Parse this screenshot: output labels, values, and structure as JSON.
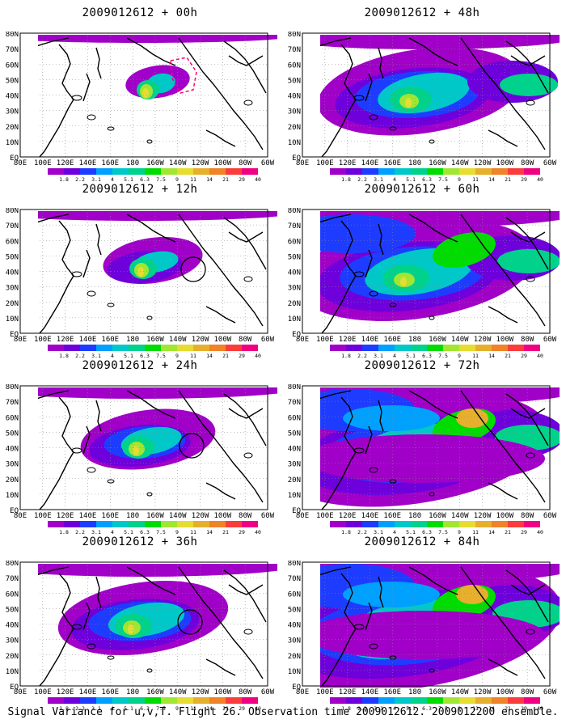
{
  "footer": "Signal Variance for u,v,T. Flight 26. Observation time 2009012612. 2009012200 ensemble.",
  "lat_labels": [
    "80N",
    "70N",
    "60N",
    "50N",
    "40N",
    "30N",
    "20N",
    "10N",
    "EQ"
  ],
  "lon_labels": [
    "80E",
    "100E",
    "120E",
    "140E",
    "160E",
    "180",
    "160W",
    "140W",
    "120W",
    "100W",
    "80W",
    "60W"
  ],
  "colorbar": {
    "labels": [
      "1.8",
      "2.2",
      "3.1",
      "4",
      "5.1",
      "6.3",
      "7.5",
      "9",
      "11",
      "14",
      "21",
      "29",
      "40"
    ],
    "colors": [
      "#a000c8",
      "#6e00dc",
      "#1e3cff",
      "#00a0ff",
      "#00c8c8",
      "#00d28c",
      "#00dc00",
      "#a0e632",
      "#e6dc32",
      "#e6af2d",
      "#f08228",
      "#fa3c3c",
      "#f00082"
    ]
  },
  "panels": [
    {
      "title": "2009012612 + 00h",
      "level": 0,
      "circle": null,
      "dashed_box": true
    },
    {
      "title": "2009012612 + 12h",
      "level": 1,
      "circle": [
        250,
        294
      ],
      "dashed_box": false
    },
    {
      "title": "2009012612 + 24h",
      "level": 2,
      "circle": [
        246,
        545
      ],
      "dashed_box": false
    },
    {
      "title": "2009012612 + 36h",
      "level": 3,
      "circle": [
        297,
        762
      ],
      "dashed_box": false
    },
    {
      "title": "2009012612 + 48h",
      "level": 4,
      "circle": null,
      "dashed_box": false
    },
    {
      "title": "2009012612 + 60h",
      "level": 5,
      "circle": null,
      "dashed_box": false
    },
    {
      "title": "2009012612 + 72h",
      "level": 6,
      "circle": null,
      "dashed_box": false
    },
    {
      "title": "2009012612 + 84h",
      "level": 7,
      "circle": null,
      "dashed_box": false
    }
  ]
}
